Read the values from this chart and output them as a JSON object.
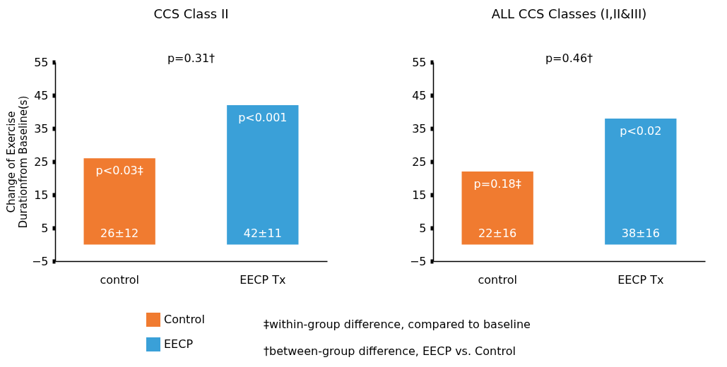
{
  "chart_data": [
    {
      "type": "bar",
      "title": "CCS Class II",
      "ylabel": "Change of Exercise Durationfrom Baseline(s)",
      "categories": [
        "control",
        "EECP Tx"
      ],
      "series": [
        {
          "name": "Control",
          "color": "#f07b30",
          "values": [
            26,
            null
          ],
          "value_labels": [
            "26±12",
            null
          ]
        },
        {
          "name": "EECP",
          "color": "#3aa0d8",
          "values": [
            null,
            42
          ],
          "value_labels": [
            null,
            "42±11"
          ]
        }
      ],
      "ylim": [
        -5,
        55
      ],
      "yticks": [
        -5,
        5,
        15,
        25,
        35,
        45,
        55
      ],
      "grid": false,
      "legend": "bottom",
      "annotations": [
        "p<0.03‡",
        "p<0.001",
        "p=0.31†",
        "‡within-group difference, compared to baseline",
        "†between-group difference, EECP vs. Control"
      ]
    },
    {
      "type": "bar",
      "title": "ALL CCS Classes (I,II&III)",
      "categories": [
        "control",
        "EECP Tx"
      ],
      "series": [
        {
          "color": "#f07b30",
          "values": [
            22,
            null
          ],
          "value_labels": [
            "22±16",
            null
          ]
        },
        {
          "color": "#3aa0d8",
          "values": [
            null,
            38
          ],
          "value_labels": [
            null,
            "38±16"
          ]
        }
      ],
      "ylim": [
        -5,
        55
      ],
      "yticks": [
        -5,
        5,
        15,
        25,
        35,
        45,
        55
      ],
      "grid": false,
      "annotations": [
        "p=0.18‡",
        "p<0.02",
        "p=0.46†"
      ]
    }
  ]
}
